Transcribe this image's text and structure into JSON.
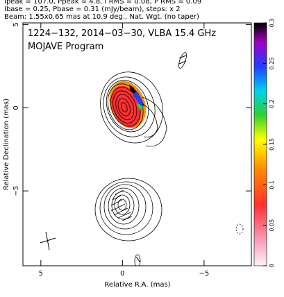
{
  "chart_data": {
    "type": "contour",
    "header": [
      "Ipeak = 107.0, Ppeak = 4.8, I RMS = 0.08, P RMS = 0.09",
      "Ibase = 0.25, Pbase = 0.31 (mJy/beam), steps: x 2",
      "Beam: 1.55x0.65 mas at 10.9 deg., Nat. Wgt. (no taper)"
    ],
    "title": "1224−132, 2014−03−30, VLBA 15.4 GHz",
    "subtitle": "MOJAVE Program",
    "xlabel": "Relative R.A. (mas)",
    "ylabel": "Relative Declination (mas)",
    "xlim": [
      6.1,
      -7.9
    ],
    "ylim": [
      -9.5,
      5.1
    ],
    "xticks": [
      5,
      0,
      {
        "value": -5,
        "label": "−5"
      }
    ],
    "yticks": [
      5,
      0,
      {
        "value": -5,
        "label": "−5"
      }
    ],
    "colorbar": {
      "lim": [
        0,
        0.3
      ],
      "ticks": [
        0,
        0.05,
        0.1,
        0.15,
        0.2,
        0.25,
        0.3
      ]
    }
  }
}
